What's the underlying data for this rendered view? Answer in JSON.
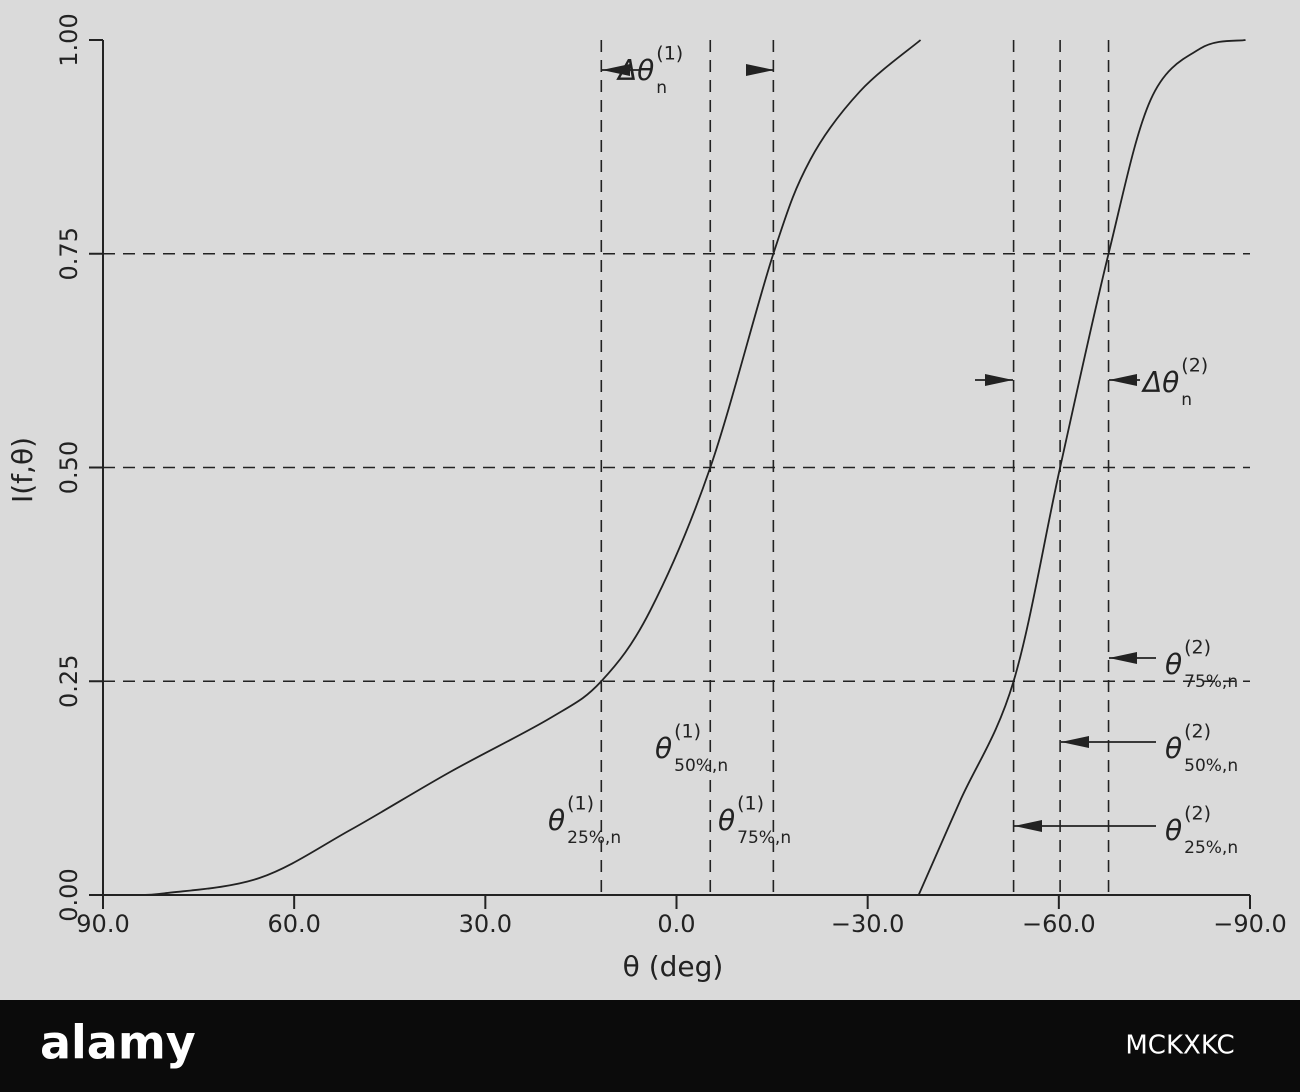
{
  "chart_data": {
    "type": "line",
    "x_label": "θ (deg)",
    "y_label": "I(f,θ)",
    "xlim": [
      90,
      -90
    ],
    "xticks": [
      {
        "value": 90,
        "label": "90.0"
      },
      {
        "value": 60,
        "label": "60.0"
      },
      {
        "value": 30,
        "label": "30.0"
      },
      {
        "value": 0,
        "label": "0.0"
      },
      {
        "value": -30,
        "label": "−30.0"
      },
      {
        "value": -60,
        "label": "−60.0"
      },
      {
        "value": -90,
        "label": "−90.0"
      }
    ],
    "ylim": [
      0,
      1
    ],
    "yticks": [
      {
        "value": 0,
        "label": "0.00"
      },
      {
        "value": 0.25,
        "label": "0.25"
      },
      {
        "value": 0.5,
        "label": "0.50"
      },
      {
        "value": 0.75,
        "label": "0.75"
      },
      {
        "value": 1,
        "label": "1.00"
      }
    ],
    "series": [
      {
        "color": "#222222",
        "x": [
          85.8,
          80.3,
          65.4,
          51.2,
          35.5,
          19.8,
          11.8,
          4.1,
          -5.3,
          -15.2,
          -21,
          -28.8,
          -38.3
        ],
        "values": [
          0,
          0.002,
          0.02,
          0.076,
          0.144,
          0.207,
          0.25,
          0.333,
          0.5,
          0.75,
          0.86,
          0.94,
          1
        ]
      },
      {
        "color": "#222222",
        "x": [
          -38,
          -44.5,
          -52.9,
          -60.2,
          -67.8,
          -74.4,
          -82.2,
          -89.3
        ],
        "values": [
          0,
          0.11,
          0.25,
          0.5,
          0.75,
          0.93,
          0.99,
          1
        ]
      }
    ],
    "reference_y": [
      0.25,
      0.5,
      0.75
    ],
    "reference_x": [
      11.8,
      -5.3,
      -15.2,
      -52.9,
      -60.2,
      -67.8
    ],
    "annotations": [
      {
        "base": "Δθ",
        "sup": "(1)",
        "sub": "n"
      },
      {
        "base": "Δθ",
        "sup": "(2)",
        "sub": "n"
      },
      {
        "base": "θ",
        "sup": "(1)",
        "sub": "50%,n"
      },
      {
        "base": "θ",
        "sup": "(1)",
        "sub": "25%,n"
      },
      {
        "base": "θ",
        "sup": "(1)",
        "sub": "75%,n"
      },
      {
        "base": "θ",
        "sup": "(2)",
        "sub": "75%,n"
      },
      {
        "base": "θ",
        "sup": "(2)",
        "sub": "50%,n"
      },
      {
        "base": "θ",
        "sup": "(2)",
        "sub": "25%,n"
      }
    ]
  },
  "watermark": {
    "brand": "alamy",
    "image_id": "MCKXKC"
  }
}
